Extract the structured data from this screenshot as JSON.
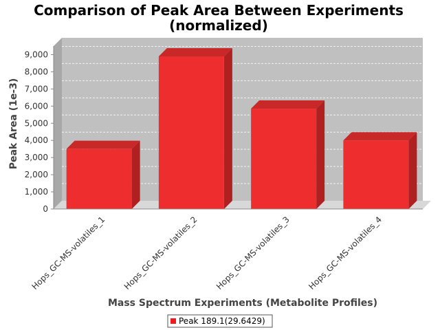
{
  "chart_data": {
    "type": "bar",
    "title_line1": "Comparison of Peak Area Between Experiments",
    "title_line2": "(normalized)",
    "xlabel": "Mass Spectrum Experiments (Metabolite Profiles)",
    "ylabel": "Peak Area (1e-3)",
    "categories": [
      "Hops_GC-MS-volatiles_1",
      "Hops_GC-MS-volatiles_2",
      "Hops_GC-MS-volatiles_3",
      "Hops_GC-MS-volatiles_4"
    ],
    "series": [
      {
        "name": "Peak 189.1(29.6429)",
        "values": [
          3500,
          8900,
          5850,
          4000
        ],
        "color": "#ee1c1c"
      }
    ],
    "ylim": [
      0,
      9500
    ],
    "yticks": [
      0,
      1000,
      2000,
      3000,
      4000,
      5000,
      6000,
      7000,
      8000,
      9000
    ],
    "ytick_labels": [
      "0",
      "1,000",
      "2,000",
      "3,000",
      "4,000",
      "5,000",
      "6,000",
      "7,000",
      "8,000",
      "9,000"
    ],
    "grid": true,
    "legend_position": "bottom",
    "colors": {
      "plot_bg": "#c0c0c0",
      "wall_side": "#a8a8a8",
      "floor": "#d8d8d8",
      "bar": "#ee2e2e",
      "bar_side": "#b02020",
      "bar_top": "#c82828"
    }
  }
}
